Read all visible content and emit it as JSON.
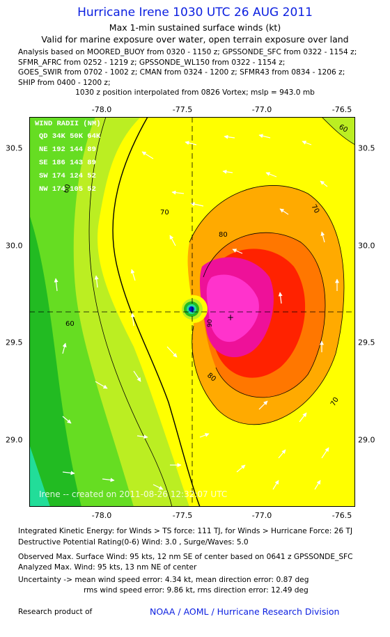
{
  "header": {
    "title": "Hurricane Irene 1030 UTC 26 AUG 2011",
    "subtitle1": "Max 1-min sustained surface winds (kt)",
    "subtitle2": "Valid for marine exposure over water, open terrain exposure over land",
    "analysis_lines": [
      "Analysis based on MOORED_BUOY from 0320 - 1150 z; GPSSONDE_SFC from 0322 - 1154 z;",
      "SFMR_AFRC from 0252 - 1219 z; GPSSONDE_WL150 from 0322 - 1154 z;",
      "GOES_SWIR from 0702 - 1002 z; CMAN from 0324 - 1200 z; SFMR43 from 0834 - 1206 z;",
      "SHIP from 0400 - 1200 z;"
    ],
    "position_note": "1030 z position interpolated from 0826 Vortex; mslp = 943.0 mb"
  },
  "map": {
    "lon_ticks": [
      "-78.0",
      "-77.5",
      "-77.0",
      "-76.5"
    ],
    "lat_ticks": [
      "30.5",
      "30.0",
      "29.5",
      "29.0"
    ],
    "lon_range": [
      -78.18,
      -76.45
    ],
    "lat_range": [
      29.65,
      30.72
    ],
    "center": {
      "lon": -77.4,
      "lat": 29.66
    },
    "contour_labels": [
      "60",
      "70",
      "80",
      "90",
      "60",
      "70",
      "80",
      "70",
      "60"
    ],
    "wind_radii": {
      "header": "WIND RADII (NM)",
      "columns": "QD 34K 50K 64K",
      "rows": [
        "NE 192 144  89",
        "SE 186 143  89",
        "SW 174 124  52",
        "NW 174 105  52"
      ]
    },
    "watermark": "Irene -- created on 2011-08-26 12:32:07 UTC",
    "colors": {
      "green": "#22bb22",
      "light_green": "#66dd22",
      "yellow_green": "#bbee22",
      "yellow": "#ffff00",
      "light_orange": "#ffaa00",
      "orange": "#ff7700",
      "red": "#ff2200",
      "magenta": "#ee1199",
      "pink": "#ff33cc",
      "teal": "#22dd99"
    }
  },
  "footer": {
    "ike": "Integrated Kinetic Energy:  for Winds > TS force: 111 TJ,  for Winds > Hurricane Force: 26 TJ",
    "dpr": "Destructive Potential Rating(0-6)   Wind: 3.0 , Surge/Waves: 5.0",
    "obs": "Observed Max. Surface Wind: 95 kts, 12 nm SE of center based on 0641 z GPSSONDE_SFC",
    "ana": "Analyzed Max. Wind: 95 kts, 13 nm NE of center",
    "unc1": "Uncertainty -> mean wind speed error: 4.34 kt,   mean direction error: 0.87 deg",
    "unc2": "rms wind speed error: 9.86 kt,   rms direction error: 12.49 deg",
    "research": "Research product of",
    "org": "NOAA / AOML / Hurricane Research Division"
  }
}
